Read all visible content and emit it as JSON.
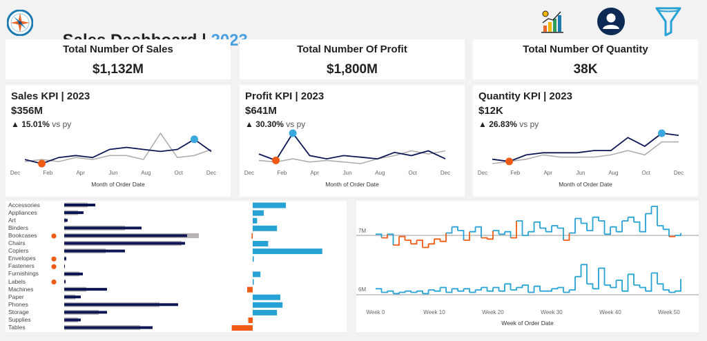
{
  "header": {
    "title": "Sales Dashboard | ",
    "year": "2023",
    "icons": [
      "compass-logo",
      "growth-chart-icon",
      "user-icon",
      "filter-icon"
    ],
    "year_color": "#4a9fdf"
  },
  "kpis": [
    {
      "title": "Total Number Of Sales",
      "value": "$1,132M"
    },
    {
      "title": "Total Number Of Profit",
      "value": "$1,800M"
    },
    {
      "title": "Total Number Of Quantity",
      "value": "38K"
    }
  ],
  "sparks": [
    {
      "title": "Sales KPI | 2023",
      "value": "$356M",
      "delta": "▲ 15.01%",
      "vs": "vs py",
      "months": [
        "Dec",
        "Feb",
        "Apr",
        "Jun",
        "Aug",
        "Oct",
        "Dec"
      ],
      "xtitle": "Month of Order Date",
      "current": [
        5,
        3,
        6,
        7,
        6,
        10,
        11,
        10,
        9,
        10,
        15,
        9
      ],
      "previous": [
        4,
        5,
        4,
        6,
        5,
        7,
        7,
        5,
        18,
        6,
        7,
        10
      ],
      "min_index": 1,
      "max_index": 10
    },
    {
      "title": "Profit KPI | 2023",
      "value": "$641M",
      "delta": "▲ 30.30%",
      "vs": "vs py",
      "months": [
        "Dec",
        "Feb",
        "Apr",
        "Jun",
        "Aug",
        "Oct",
        "Dec"
      ],
      "xtitle": "Month of Order Date",
      "current": [
        9,
        5,
        22,
        8,
        6,
        8,
        7,
        6,
        10,
        8,
        11,
        6
      ],
      "previous": [
        5,
        4,
        6,
        4,
        5,
        4,
        3,
        6,
        8,
        11,
        9,
        11
      ],
      "min_index": 1,
      "max_index": 2
    },
    {
      "title": "Quantity KPI | 2023",
      "value": "$12K",
      "delta": "▲ 26.83%",
      "vs": "vs py",
      "months": [
        "Dec",
        "Feb",
        "Apr",
        "Jun",
        "Aug",
        "Oct",
        "Dec"
      ],
      "xtitle": "Month of Order Date",
      "current": [
        6,
        5,
        8,
        9,
        9,
        9,
        10,
        10,
        16,
        12,
        18,
        17
      ],
      "previous": [
        4,
        5,
        6,
        8,
        7,
        7,
        7,
        8,
        10,
        8,
        14,
        14
      ],
      "min_index": 1,
      "max_index": 10
    }
  ],
  "categories": {
    "names": [
      "Accessories",
      "Appliances",
      "Art",
      "Binders",
      "Bookcases",
      "Chairs",
      "Copiers",
      "Envelopes",
      "Fasteners",
      "Furnishings",
      "Labels",
      "Machines",
      "Paper",
      "Phones",
      "Storage",
      "Supplies",
      "Tables"
    ],
    "current": [
      45,
      28,
      5,
      112,
      178,
      175,
      88,
      3,
      1,
      27,
      2,
      62,
      24,
      165,
      62,
      24,
      128
    ],
    "previous": [
      34,
      20,
      3,
      88,
      195,
      170,
      60,
      3,
      1,
      22,
      2,
      32,
      16,
      138,
      50,
      20,
      110
    ],
    "diff": [
      30,
      10,
      4,
      22,
      -1,
      14,
      63,
      1,
      0,
      7,
      1,
      -5,
      25,
      27,
      22,
      -4,
      -19
    ],
    "alerts": [
      false,
      false,
      false,
      false,
      true,
      false,
      false,
      true,
      true,
      false,
      true,
      false,
      false,
      false,
      false,
      false,
      false
    ],
    "colors": {
      "current": "#0d1654",
      "previous": "#b9b3b3",
      "positive": "#27a2d4",
      "negative": "#ef5b15",
      "alert": "#ef5b15"
    }
  },
  "weekly": {
    "xtitle": "Week of Order Date",
    "ticks": [
      "Week 0",
      "Week 10",
      "Week 20",
      "Week 30",
      "Week 40",
      "Week 50"
    ],
    "tick_weeks": [
      0,
      10,
      20,
      30,
      40,
      50
    ],
    "ref_labels": [
      "7M",
      "6M"
    ],
    "sales": [
      7.01,
      6.98,
      7.01,
      6.92,
      6.99,
      6.96,
      6.93,
      6.96,
      6.9,
      6.93,
      6.97,
      6.95,
      7.02,
      7.07,
      7.04,
      6.96,
      7.03,
      7.07,
      6.98,
      6.97,
      7.04,
      7.01,
      7.03,
      6.98,
      7.12,
      7.0,
      7.03,
      7.11,
      7.06,
      7.03,
      7.08,
      7.06,
      6.96,
      7.02,
      7.14,
      7.1,
      7.04,
      7.15,
      7.12,
      7.01,
      7.07,
      7.03,
      7.12,
      7.15,
      7.11,
      7.03,
      7.18,
      7.24,
      7.08,
      7.05,
      6.99,
      7.0,
      7.02
    ],
    "profit": [
      6.05,
      6.02,
      6.03,
      6.01,
      6.02,
      6.03,
      6.02,
      6.03,
      6.01,
      6.04,
      6.03,
      6.06,
      6.02,
      6.05,
      6.03,
      6.05,
      6.02,
      6.04,
      6.06,
      6.03,
      6.06,
      6.03,
      6.09,
      6.04,
      6.06,
      6.08,
      6.02,
      6.07,
      6.03,
      6.03,
      6.05,
      6.06,
      6.02,
      6.04,
      6.15,
      6.25,
      6.09,
      6.05,
      6.22,
      6.08,
      6.06,
      6.12,
      6.03,
      6.17,
      6.08,
      6.06,
      6.03,
      6.18,
      6.09,
      6.04,
      6.02,
      6.03,
      6.13
    ],
    "colors": {
      "above": "#27a2d4",
      "below": "#ef5b15"
    }
  }
}
